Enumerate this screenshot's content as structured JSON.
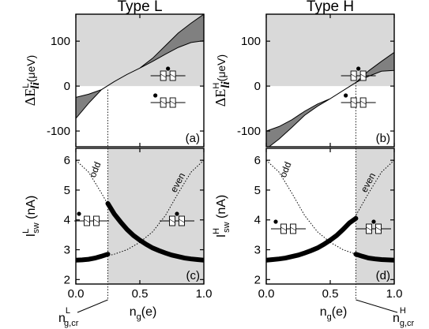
{
  "colors": {
    "shade": "#d9d9d9",
    "band": "#808080",
    "curve": "#000000"
  },
  "icon_names": [
    "double-dot-device-icon"
  ],
  "chart_data": [
    {
      "id": "a",
      "type": "area",
      "panel_letter": "(a)",
      "title": "Type L",
      "ylabel_prefix": "ΔE",
      "ylabel_sup": "L",
      "ylabel_sub": "li",
      "ylabel_unit": "(μeV)",
      "xlim": [
        0,
        1
      ],
      "ylim": [
        -135,
        160
      ],
      "yticks": [
        -100,
        0,
        100
      ],
      "ytick_labels": [
        "-100",
        "0",
        "100"
      ],
      "xticks": [
        0,
        0.5,
        1
      ],
      "shaded_y_above": 0,
      "bands": [
        {
          "x": [
            0,
            0.1,
            0.2,
            0.3,
            0.4,
            0.5,
            0.6,
            0.7,
            0.8,
            0.9,
            1.0
          ],
          "y_upper": [
            -25,
            -18,
            -8,
            10,
            26,
            40,
            62,
            90,
            118,
            140,
            160
          ],
          "y_lower": [
            -72,
            -38,
            -8,
            10,
            26,
            40,
            55,
            71,
            86,
            97,
            101
          ]
        }
      ],
      "critical_x": 0.25
    },
    {
      "id": "b",
      "type": "area",
      "panel_letter": "(b)",
      "title": "Type H",
      "ylabel_prefix": "ΔE",
      "ylabel_sup": "H",
      "ylabel_sub": "li",
      "ylabel_unit": "(μeV)",
      "xlim": [
        0,
        1
      ],
      "ylim": [
        -135,
        160
      ],
      "yticks": [
        -100,
        0,
        100
      ],
      "ytick_labels": [
        "-100",
        "0",
        "100"
      ],
      "xticks": [
        0,
        0.5,
        1
      ],
      "shaded_y_above": 0,
      "bands": [
        {
          "x": [
            0,
            0.1,
            0.2,
            0.3,
            0.4,
            0.5,
            0.6,
            0.7,
            0.8,
            0.9,
            1.0
          ],
          "y_upper": [
            -100,
            -90,
            -75,
            -56,
            -40,
            -28,
            -10,
            8,
            22,
            33,
            35
          ],
          "y_lower": [
            -140,
            -118,
            -92,
            -65,
            -45,
            -28,
            -10,
            8,
            34,
            55,
            75
          ]
        }
      ],
      "critical_x": 0.7
    },
    {
      "id": "c",
      "type": "line",
      "panel_letter": "(c)",
      "ylabel_prefix": "I",
      "ylabel_sup": "L",
      "ylabel_sub": "sw",
      "ylabel_unit": "(nA)",
      "xlabel": "n",
      "xlabel_sub": "g",
      "xlabel_unit": "(e)",
      "xlim": [
        0,
        1
      ],
      "ylim": [
        1.85,
        6.4
      ],
      "xticks": [
        0,
        0.5,
        1
      ],
      "xtick_labels": [
        "0.0",
        "0.5",
        "1.0"
      ],
      "yticks": [
        2,
        3,
        4,
        5,
        6
      ],
      "ytick_labels": [
        "2",
        "3",
        "4",
        "5",
        "6"
      ],
      "shaded_x_from": 0.25,
      "dotted_curves": [
        {
          "label": "odd",
          "x": [
            0,
            0.1,
            0.2,
            0.3,
            0.4,
            0.5,
            0.6,
            0.7,
            0.8,
            0.9,
            1.0
          ],
          "y": [
            6.0,
            5.6,
            4.9,
            4.15,
            3.6,
            3.25,
            3.0,
            2.85,
            2.75,
            2.7,
            2.65
          ]
        },
        {
          "label": "even",
          "x": [
            0,
            0.1,
            0.2,
            0.3,
            0.4,
            0.5,
            0.6,
            0.7,
            0.8,
            0.9,
            1.0
          ],
          "y": [
            2.65,
            2.7,
            2.75,
            2.85,
            3.0,
            3.25,
            3.6,
            4.15,
            4.9,
            5.6,
            6.0
          ]
        }
      ],
      "thick_segments": [
        {
          "x": [
            0,
            0.05,
            0.1,
            0.15,
            0.2,
            0.25
          ],
          "y": [
            2.65,
            2.66,
            2.68,
            2.72,
            2.78,
            2.85
          ]
        },
        {
          "x": [
            0.25,
            0.3,
            0.35,
            0.4,
            0.45,
            0.5,
            0.55,
            0.6,
            0.65,
            0.7,
            0.75,
            0.8,
            0.85,
            0.9,
            0.95,
            1.0
          ],
          "y": [
            4.55,
            4.2,
            3.93,
            3.68,
            3.48,
            3.32,
            3.18,
            3.06,
            2.97,
            2.89,
            2.82,
            2.77,
            2.72,
            2.69,
            2.67,
            2.65
          ]
        }
      ],
      "critical_label": "n",
      "critical_sup": "L",
      "critical_sub": "g,cr",
      "critical_x": 0.25
    },
    {
      "id": "d",
      "type": "line",
      "panel_letter": "(d)",
      "ylabel_prefix": "I",
      "ylabel_sup": "H",
      "ylabel_sub": "sw",
      "ylabel_unit": "(nA)",
      "xlabel": "n",
      "xlabel_sub": "g",
      "xlabel_unit": "(e)",
      "xlim": [
        0,
        1
      ],
      "ylim": [
        1.85,
        6.4
      ],
      "xticks": [
        0,
        0.5,
        1
      ],
      "xtick_labels": [
        "0.0",
        "0.5",
        "1.0"
      ],
      "yticks": [
        2,
        3,
        4,
        5,
        6
      ],
      "ytick_labels": [
        "2",
        "3",
        "4",
        "5",
        "6"
      ],
      "shaded_x_from": 0.7,
      "dotted_curves": [
        {
          "label": "odd",
          "x": [
            0,
            0.1,
            0.2,
            0.3,
            0.4,
            0.5,
            0.6,
            0.7,
            0.8,
            0.9,
            1.0
          ],
          "y": [
            6.0,
            5.6,
            4.9,
            4.15,
            3.6,
            3.25,
            3.0,
            2.85,
            2.75,
            2.7,
            2.65
          ]
        },
        {
          "label": "even",
          "x": [
            0,
            0.1,
            0.2,
            0.3,
            0.4,
            0.5,
            0.6,
            0.7,
            0.8,
            0.9,
            1.0
          ],
          "y": [
            2.65,
            2.7,
            2.75,
            2.85,
            3.0,
            3.25,
            3.6,
            4.15,
            4.9,
            5.6,
            6.0
          ]
        }
      ],
      "thick_segments": [
        {
          "x": [
            0,
            0.05,
            0.1,
            0.15,
            0.2,
            0.25,
            0.3,
            0.35,
            0.4,
            0.45,
            0.5,
            0.55,
            0.6,
            0.65,
            0.7
          ],
          "y": [
            2.65,
            2.67,
            2.69,
            2.72,
            2.77,
            2.82,
            2.89,
            2.97,
            3.06,
            3.18,
            3.32,
            3.48,
            3.68,
            3.9,
            4.05
          ]
        },
        {
          "x": [
            0.7,
            0.75,
            0.8,
            0.85,
            0.9,
            0.95,
            1.0
          ],
          "y": [
            2.85,
            2.78,
            2.72,
            2.69,
            2.67,
            2.66,
            2.65
          ]
        }
      ],
      "critical_label": "n",
      "critical_sup": "H",
      "critical_sub": "g,cr",
      "critical_x": 0.7
    }
  ]
}
